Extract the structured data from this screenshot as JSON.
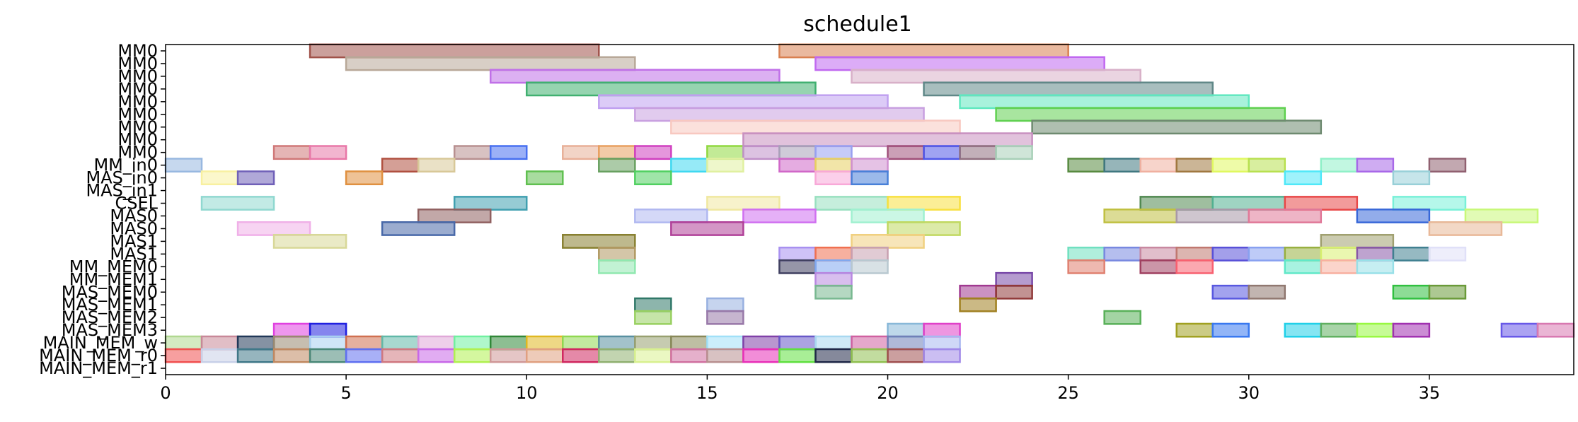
{
  "chart_data": {
    "type": "gantt",
    "title": "schedule1",
    "xlim": [
      0,
      39
    ],
    "x_ticks": [
      0,
      5,
      10,
      15,
      20,
      25,
      30,
      35
    ],
    "grid": false,
    "legend": "none",
    "rows": [
      "MM0",
      "MM0",
      "MM0",
      "MM0",
      "MM0",
      "MM0",
      "MM0",
      "MM0",
      "MM0",
      "MM_in0",
      "MAS_in0",
      "MAS_in1",
      "CSEL",
      "MAS0",
      "MAS0",
      "MAS1",
      "MAS1",
      "MM_MEM0",
      "MM_MEM1",
      "MAS_MEM0",
      "MAS_MEM1",
      "MAS_MEM2",
      "MAS_MEM3",
      "MAIN_MEM_w",
      "MAIN_MEM_r0",
      "MAIN_MEM_r1"
    ],
    "tasks": [
      {
        "row": 0,
        "start": 4,
        "end": 12,
        "color": "#a0524a"
      },
      {
        "row": 0,
        "start": 17,
        "end": 25,
        "color": "#d98050"
      },
      {
        "row": 1,
        "start": 5,
        "end": 13,
        "color": "#b8a898"
      },
      {
        "row": 1,
        "start": 18,
        "end": 26,
        "color": "#c068f0"
      },
      {
        "row": 2,
        "start": 9,
        "end": 17,
        "color": "#c070e8"
      },
      {
        "row": 2,
        "start": 19,
        "end": 27,
        "color": "#d8b0c8"
      },
      {
        "row": 3,
        "start": 10,
        "end": 18,
        "color": "#40b070"
      },
      {
        "row": 3,
        "start": 21,
        "end": 29,
        "color": "#608888"
      },
      {
        "row": 4,
        "start": 12,
        "end": 20,
        "color": "#c0a0f0"
      },
      {
        "row": 4,
        "start": 22,
        "end": 30,
        "color": "#60e8c0"
      },
      {
        "row": 5,
        "start": 13,
        "end": 21,
        "color": "#c8a0e0"
      },
      {
        "row": 5,
        "start": 23,
        "end": 31,
        "color": "#60d050"
      },
      {
        "row": 6,
        "start": 14,
        "end": 22,
        "color": "#f8c8c0"
      },
      {
        "row": 6,
        "start": 24,
        "end": 32,
        "color": "#6e8a70"
      },
      {
        "row": 7,
        "start": 16,
        "end": 24,
        "color": "#c890c0"
      },
      {
        "row": 8,
        "start": 3,
        "end": 4,
        "color": "#d07878"
      },
      {
        "row": 8,
        "start": 4,
        "end": 5,
        "color": "#e878a8"
      },
      {
        "row": 8,
        "start": 8,
        "end": 9,
        "color": "#b89090"
      },
      {
        "row": 8,
        "start": 9,
        "end": 10,
        "color": "#4870f0"
      },
      {
        "row": 8,
        "start": 11,
        "end": 12,
        "color": "#e8b098"
      },
      {
        "row": 8,
        "start": 12,
        "end": 13,
        "color": "#e8a060"
      },
      {
        "row": 8,
        "start": 13,
        "end": 14,
        "color": "#d040c0"
      },
      {
        "row": 8,
        "start": 15,
        "end": 16,
        "color": "#90d840"
      },
      {
        "row": 8,
        "start": 16,
        "end": 17,
        "color": "#c090c8"
      },
      {
        "row": 8,
        "start": 17,
        "end": 18,
        "color": "#a8a0b8"
      },
      {
        "row": 8,
        "start": 18,
        "end": 19,
        "color": "#98a0f0"
      },
      {
        "row": 8,
        "start": 20,
        "end": 21,
        "color": "#a0507a"
      },
      {
        "row": 8,
        "start": 21,
        "end": 22,
        "color": "#5058e8"
      },
      {
        "row": 8,
        "start": 22,
        "end": 23,
        "color": "#907080"
      },
      {
        "row": 8,
        "start": 23,
        "end": 24,
        "color": "#a8d0b8"
      },
      {
        "row": 9,
        "start": 0,
        "end": 1,
        "color": "#98b8e0"
      },
      {
        "row": 9,
        "start": 6,
        "end": 7,
        "color": "#b05040"
      },
      {
        "row": 9,
        "start": 7,
        "end": 8,
        "color": "#d8c898"
      },
      {
        "row": 9,
        "start": 12,
        "end": 13,
        "color": "#68a060"
      },
      {
        "row": 9,
        "start": 14,
        "end": 15,
        "color": "#40d8f0"
      },
      {
        "row": 9,
        "start": 15,
        "end": 16,
        "color": "#e0f0a0"
      },
      {
        "row": 9,
        "start": 17,
        "end": 18,
        "color": "#d068c8"
      },
      {
        "row": 9,
        "start": 18,
        "end": 19,
        "color": "#e8d060"
      },
      {
        "row": 9,
        "start": 19,
        "end": 20,
        "color": "#d090d0"
      },
      {
        "row": 9,
        "start": 25,
        "end": 26,
        "color": "#588a40"
      },
      {
        "row": 9,
        "start": 26,
        "end": 27,
        "color": "#407880"
      },
      {
        "row": 9,
        "start": 27,
        "end": 28,
        "color": "#f0b0a0"
      },
      {
        "row": 9,
        "start": 28,
        "end": 29,
        "color": "#a07840"
      },
      {
        "row": 9,
        "start": 29,
        "end": 30,
        "color": "#e0f860"
      },
      {
        "row": 9,
        "start": 30,
        "end": 31,
        "color": "#b8e050"
      },
      {
        "row": 9,
        "start": 32,
        "end": 33,
        "color": "#90f0c8"
      },
      {
        "row": 9,
        "start": 33,
        "end": 34,
        "color": "#a868e8"
      },
      {
        "row": 9,
        "start": 35,
        "end": 36,
        "color": "#906070"
      },
      {
        "row": 10,
        "start": 1,
        "end": 2,
        "color": "#f8f0a0"
      },
      {
        "row": 10,
        "start": 2,
        "end": 3,
        "color": "#7060b8"
      },
      {
        "row": 10,
        "start": 5,
        "end": 6,
        "color": "#e09040"
      },
      {
        "row": 10,
        "start": 10,
        "end": 11,
        "color": "#60c050"
      },
      {
        "row": 10,
        "start": 13,
        "end": 14,
        "color": "#50d060"
      },
      {
        "row": 10,
        "start": 18,
        "end": 19,
        "color": "#f8a8d8"
      },
      {
        "row": 10,
        "start": 19,
        "end": 20,
        "color": "#4880d8"
      },
      {
        "row": 10,
        "start": 31,
        "end": 32,
        "color": "#50e8f8"
      },
      {
        "row": 10,
        "start": 34,
        "end": 35,
        "color": "#98d0d8"
      },
      {
        "row": 12,
        "start": 1,
        "end": 3,
        "color": "#90d8d0"
      },
      {
        "row": 12,
        "start": 8,
        "end": 10,
        "color": "#40a0b0"
      },
      {
        "row": 12,
        "start": 15,
        "end": 17,
        "color": "#f0e8a0"
      },
      {
        "row": 12,
        "start": 18,
        "end": 20,
        "color": "#98e0c0"
      },
      {
        "row": 12,
        "start": 20,
        "end": 22,
        "color": "#f8e040"
      },
      {
        "row": 12,
        "start": 27,
        "end": 29,
        "color": "#508850"
      },
      {
        "row": 12,
        "start": 29,
        "end": 31,
        "color": "#50b090"
      },
      {
        "row": 12,
        "start": 31,
        "end": 33,
        "color": "#e84848"
      },
      {
        "row": 12,
        "start": 34,
        "end": 36,
        "color": "#78f0d8"
      },
      {
        "row": 13,
        "start": 7,
        "end": 9,
        "color": "#906060"
      },
      {
        "row": 13,
        "start": 13,
        "end": 15,
        "color": "#b0b8f0"
      },
      {
        "row": 13,
        "start": 16,
        "end": 18,
        "color": "#d070f0"
      },
      {
        "row": 13,
        "start": 19,
        "end": 21,
        "color": "#a0f0d0"
      },
      {
        "row": 13,
        "start": 26,
        "end": 28,
        "color": "#c0c040"
      },
      {
        "row": 13,
        "start": 28,
        "end": 30,
        "color": "#a898a8"
      },
      {
        "row": 13,
        "start": 30,
        "end": 32,
        "color": "#e07898"
      },
      {
        "row": 13,
        "start": 33,
        "end": 35,
        "color": "#3868d8"
      },
      {
        "row": 13,
        "start": 36,
        "end": 38,
        "color": "#c8f878"
      },
      {
        "row": 14,
        "start": 2,
        "end": 4,
        "color": "#f0b0e8"
      },
      {
        "row": 14,
        "start": 6,
        "end": 8,
        "color": "#4868a8"
      },
      {
        "row": 14,
        "start": 14,
        "end": 16,
        "color": "#b04098"
      },
      {
        "row": 14,
        "start": 20,
        "end": 22,
        "color": "#c0d860"
      },
      {
        "row": 14,
        "start": 35,
        "end": 37,
        "color": "#e8b898"
      },
      {
        "row": 15,
        "start": 3,
        "end": 5,
        "color": "#d8d898"
      },
      {
        "row": 15,
        "start": 11,
        "end": 13,
        "color": "#888030"
      },
      {
        "row": 15,
        "start": 19,
        "end": 21,
        "color": "#f0d080"
      },
      {
        "row": 15,
        "start": 32,
        "end": 34,
        "color": "#a0a070"
      },
      {
        "row": 16,
        "start": 12,
        "end": 13,
        "color": "#b09860"
      },
      {
        "row": 16,
        "start": 17,
        "end": 18,
        "color": "#a890f0"
      },
      {
        "row": 16,
        "start": 18,
        "end": 19,
        "color": "#f07050"
      },
      {
        "row": 16,
        "start": 19,
        "end": 20,
        "color": "#c8a0b0"
      },
      {
        "row": 16,
        "start": 25,
        "end": 26,
        "color": "#70e0c0"
      },
      {
        "row": 16,
        "start": 26,
        "end": 27,
        "color": "#7888e0"
      },
      {
        "row": 16,
        "start": 27,
        "end": 28,
        "color": "#c888a0"
      },
      {
        "row": 16,
        "start": 28,
        "end": 29,
        "color": "#c07870"
      },
      {
        "row": 16,
        "start": 29,
        "end": 30,
        "color": "#5850d8"
      },
      {
        "row": 16,
        "start": 30,
        "end": 31,
        "color": "#88a0f0"
      },
      {
        "row": 16,
        "start": 31,
        "end": 32,
        "color": "#98b040"
      },
      {
        "row": 16,
        "start": 32,
        "end": 33,
        "color": "#d8f070"
      },
      {
        "row": 16,
        "start": 33,
        "end": 34,
        "color": "#8858a8"
      },
      {
        "row": 16,
        "start": 34,
        "end": 35,
        "color": "#408090"
      },
      {
        "row": 16,
        "start": 35,
        "end": 36,
        "color": "#e0e0f8"
      },
      {
        "row": 17,
        "start": 12,
        "end": 13,
        "color": "#90e8b0"
      },
      {
        "row": 17,
        "start": 17,
        "end": 18,
        "color": "#404060"
      },
      {
        "row": 17,
        "start": 18,
        "end": 19,
        "color": "#80a8f0"
      },
      {
        "row": 17,
        "start": 19,
        "end": 20,
        "color": "#b8c8d0"
      },
      {
        "row": 17,
        "start": 25,
        "end": 26,
        "color": "#e08070"
      },
      {
        "row": 17,
        "start": 27,
        "end": 28,
        "color": "#a04060"
      },
      {
        "row": 17,
        "start": 28,
        "end": 29,
        "color": "#f86070"
      },
      {
        "row": 17,
        "start": 31,
        "end": 32,
        "color": "#60e8c8"
      },
      {
        "row": 17,
        "start": 32,
        "end": 33,
        "color": "#f8b0a0"
      },
      {
        "row": 17,
        "start": 33,
        "end": 34,
        "color": "#98e0e8"
      },
      {
        "row": 18,
        "start": 18,
        "end": 19,
        "color": "#b888e0"
      },
      {
        "row": 18,
        "start": 23,
        "end": 24,
        "color": "#7848a8"
      },
      {
        "row": 19,
        "start": 18,
        "end": 19,
        "color": "#78b890"
      },
      {
        "row": 19,
        "start": 22,
        "end": 23,
        "color": "#a03890"
      },
      {
        "row": 19,
        "start": 23,
        "end": 24,
        "color": "#903838"
      },
      {
        "row": 19,
        "start": 29,
        "end": 30,
        "color": "#5858e0"
      },
      {
        "row": 19,
        "start": 30,
        "end": 31,
        "color": "#907870"
      },
      {
        "row": 19,
        "start": 34,
        "end": 35,
        "color": "#30c040"
      },
      {
        "row": 19,
        "start": 35,
        "end": 36,
        "color": "#6a9a38"
      },
      {
        "row": 20,
        "start": 13,
        "end": 14,
        "color": "#307868"
      },
      {
        "row": 20,
        "start": 15,
        "end": 16,
        "color": "#98b0e0"
      },
      {
        "row": 20,
        "start": 22,
        "end": 23,
        "color": "#a08020"
      },
      {
        "row": 21,
        "start": 13,
        "end": 14,
        "color": "#98d060"
      },
      {
        "row": 21,
        "start": 15,
        "end": 16,
        "color": "#9878a8"
      },
      {
        "row": 21,
        "start": 26,
        "end": 27,
        "color": "#58b058"
      },
      {
        "row": 22,
        "start": 3,
        "end": 4,
        "color": "#e040e0"
      },
      {
        "row": 22,
        "start": 4,
        "end": 5,
        "color": "#2020e0"
      },
      {
        "row": 22,
        "start": 20,
        "end": 21,
        "color": "#88b8d8"
      },
      {
        "row": 22,
        "start": 21,
        "end": 22,
        "color": "#e040c8"
      },
      {
        "row": 22,
        "start": 28,
        "end": 29,
        "color": "#a0a020"
      },
      {
        "row": 22,
        "start": 29,
        "end": 30,
        "color": "#3878f0"
      },
      {
        "row": 22,
        "start": 31,
        "end": 32,
        "color": "#20d0e8"
      },
      {
        "row": 22,
        "start": 32,
        "end": 33,
        "color": "#60b060"
      },
      {
        "row": 22,
        "start": 33,
        "end": 34,
        "color": "#98f840"
      },
      {
        "row": 22,
        "start": 34,
        "end": 35,
        "color": "#a030b0"
      },
      {
        "row": 22,
        "start": 37,
        "end": 38,
        "color": "#6858e8"
      },
      {
        "row": 22,
        "start": 38,
        "end": 39,
        "color": "#d878b0"
      },
      {
        "row": 23,
        "start": 0,
        "end": 1,
        "color": "#b0d890"
      },
      {
        "row": 23,
        "start": 1,
        "end": 2,
        "color": "#c88898"
      },
      {
        "row": 23,
        "start": 2,
        "end": 3,
        "color": "#203858"
      },
      {
        "row": 23,
        "start": 3,
        "end": 4,
        "color": "#988870"
      },
      {
        "row": 23,
        "start": 4,
        "end": 5,
        "color": "#a8d0f0"
      },
      {
        "row": 23,
        "start": 5,
        "end": 6,
        "color": "#d07050"
      },
      {
        "row": 23,
        "start": 6,
        "end": 7,
        "color": "#60b8a8"
      },
      {
        "row": 23,
        "start": 7,
        "end": 8,
        "color": "#e0a8d8"
      },
      {
        "row": 23,
        "start": 8,
        "end": 9,
        "color": "#70f0a0"
      },
      {
        "row": 23,
        "start": 9,
        "end": 10,
        "color": "#308838"
      },
      {
        "row": 23,
        "start": 10,
        "end": 11,
        "color": "#e0b820"
      },
      {
        "row": 23,
        "start": 11,
        "end": 12,
        "color": "#90d850"
      },
      {
        "row": 23,
        "start": 12,
        "end": 13,
        "color": "#5890a0"
      },
      {
        "row": 23,
        "start": 13,
        "end": 14,
        "color": "#98a070"
      },
      {
        "row": 23,
        "start": 14,
        "end": 15,
        "color": "#888858"
      },
      {
        "row": 23,
        "start": 15,
        "end": 16,
        "color": "#a0e0f8"
      },
      {
        "row": 23,
        "start": 16,
        "end": 17,
        "color": "#8040a8"
      },
      {
        "row": 23,
        "start": 17,
        "end": 18,
        "color": "#6858c8"
      },
      {
        "row": 23,
        "start": 18,
        "end": 19,
        "color": "#a8d8f0"
      },
      {
        "row": 23,
        "start": 19,
        "end": 20,
        "color": "#d060a0"
      },
      {
        "row": 23,
        "start": 20,
        "end": 21,
        "color": "#7080b8"
      },
      {
        "row": 23,
        "start": 21,
        "end": 22,
        "color": "#a8b8f0"
      },
      {
        "row": 24,
        "start": 0,
        "end": 1,
        "color": "#f05050"
      },
      {
        "row": 24,
        "start": 1,
        "end": 2,
        "color": "#c8d0e8"
      },
      {
        "row": 24,
        "start": 2,
        "end": 3,
        "color": "#407888"
      },
      {
        "row": 24,
        "start": 3,
        "end": 4,
        "color": "#c08860"
      },
      {
        "row": 24,
        "start": 4,
        "end": 5,
        "color": "#4a8878"
      },
      {
        "row": 24,
        "start": 5,
        "end": 6,
        "color": "#6070f0"
      },
      {
        "row": 24,
        "start": 6,
        "end": 7,
        "color": "#d07880"
      },
      {
        "row": 24,
        "start": 7,
        "end": 8,
        "color": "#c868e8"
      },
      {
        "row": 24,
        "start": 8,
        "end": 9,
        "color": "#b0f050"
      },
      {
        "row": 24,
        "start": 9,
        "end": 10,
        "color": "#d09898"
      },
      {
        "row": 24,
        "start": 10,
        "end": 11,
        "color": "#e0a080"
      },
      {
        "row": 24,
        "start": 11,
        "end": 12,
        "color": "#d02860"
      },
      {
        "row": 24,
        "start": 12,
        "end": 13,
        "color": "#90b070"
      },
      {
        "row": 24,
        "start": 13,
        "end": 14,
        "color": "#d8f090"
      },
      {
        "row": 24,
        "start": 14,
        "end": 15,
        "color": "#d070a0"
      },
      {
        "row": 24,
        "start": 15,
        "end": 16,
        "color": "#b89090"
      },
      {
        "row": 24,
        "start": 16,
        "end": 17,
        "color": "#e830b8"
      },
      {
        "row": 24,
        "start": 17,
        "end": 18,
        "color": "#60e040"
      },
      {
        "row": 24,
        "start": 18,
        "end": 19,
        "color": "#202848"
      },
      {
        "row": 24,
        "start": 19,
        "end": 20,
        "color": "#90c050"
      },
      {
        "row": 24,
        "start": 20,
        "end": 21,
        "color": "#a05050"
      },
      {
        "row": 24,
        "start": 21,
        "end": 22,
        "color": "#a088e8"
      }
    ]
  }
}
